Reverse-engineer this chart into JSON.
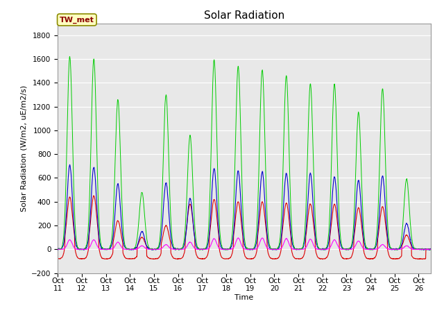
{
  "title": "Solar Radiation",
  "ylabel": "Solar Radiation (W/m2, uE/m2/s)",
  "xlabel": "Time",
  "ylim": [
    -200,
    1900
  ],
  "yticks": [
    -200,
    0,
    200,
    400,
    600,
    800,
    1000,
    1200,
    1400,
    1600,
    1800
  ],
  "xtick_labels": [
    "Oct 11",
    "Oct 12",
    "Oct 13",
    "Oct 14",
    "Oct 15",
    "Oct 16",
    "Oct 17",
    "Oct 18",
    "Oct 19",
    "Oct 20",
    "Oct 21",
    "Oct 22",
    "Oct 23",
    "Oct 24",
    "Oct 25",
    "Oct 26"
  ],
  "series_colors": {
    "RNet": "#dd0000",
    "Pyranom": "#0000cc",
    "PAR_IN": "#00cc00",
    "PAR_OUT": "#ff00ff"
  },
  "annotation_text": "TW_met",
  "bg_color": "#e8e8e8",
  "title_fontsize": 11,
  "axis_fontsize": 8,
  "tick_fontsize": 7.5,
  "par_in_peaks": [
    1620,
    1600,
    1260,
    480,
    1300,
    960,
    1590,
    1540,
    1510,
    1460,
    1390,
    1390,
    1150,
    1350,
    590
  ],
  "pyranom_peaks": [
    710,
    690,
    550,
    150,
    560,
    430,
    680,
    660,
    650,
    640,
    640,
    610,
    580,
    620,
    220
  ],
  "rnet_peaks": [
    440,
    450,
    240,
    100,
    200,
    380,
    420,
    400,
    400,
    390,
    380,
    380,
    350,
    360,
    120
  ],
  "par_out_peaks": [
    80,
    80,
    60,
    30,
    40,
    60,
    90,
    95,
    95,
    90,
    85,
    80,
    70,
    40,
    30
  ],
  "rnet_night": -80
}
